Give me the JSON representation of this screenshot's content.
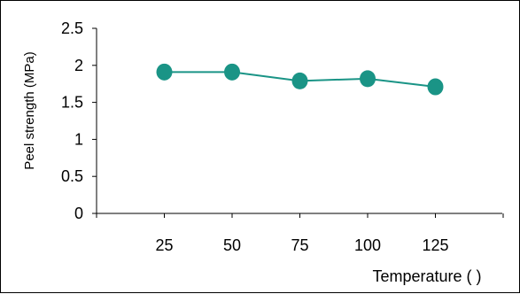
{
  "chart_data": {
    "type": "line",
    "title": "",
    "xlabel": "Temperature (    )",
    "ylabel": "Peel strength (MPa)",
    "categories": [
      "25",
      "50",
      "75",
      "100",
      "125"
    ],
    "series": [
      {
        "values": [
          1.91,
          1.91,
          1.79,
          1.82,
          1.71
        ]
      }
    ],
    "ylim": [
      0,
      2.5
    ],
    "yticks": [
      "0",
      "0.5",
      "1",
      "1.5",
      "2",
      "2.5"
    ],
    "grid": false,
    "legend": "none",
    "colors": {
      "series": "#1a9486",
      "axis": "#000000"
    }
  }
}
